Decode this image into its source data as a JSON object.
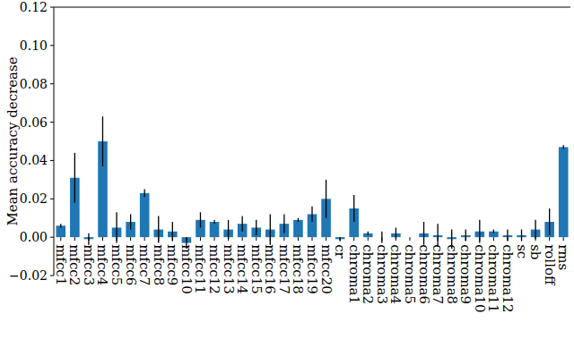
{
  "chart_data": {
    "type": "bar",
    "ylabel": "Mean accuracy decrease",
    "categories": [
      "mfcc1",
      "mfcc2",
      "mfcc3",
      "mfcc4",
      "mfcc5",
      "mfcc6",
      "mfcc7",
      "mfcc8",
      "mfcc9",
      "mfcc10",
      "mfcc11",
      "mfcc12",
      "mfcc13",
      "mfcc14",
      "mfcc15",
      "mfcc16",
      "mfcc17",
      "mfcc18",
      "mfcc19",
      "mfcc20",
      "cr",
      "chroma1",
      "chroma2",
      "chroma3",
      "chroma4",
      "chroma5",
      "chroma6",
      "chroma7",
      "chroma8",
      "chroma9",
      "chroma10",
      "chroma11",
      "chroma12",
      "sc",
      "sb",
      "rolloff",
      "rms"
    ],
    "values": [
      0.006,
      0.031,
      -0.001,
      0.05,
      0.005,
      0.008,
      0.023,
      0.004,
      0.003,
      -0.003,
      0.009,
      0.008,
      0.004,
      0.007,
      0.005,
      0.004,
      0.007,
      0.009,
      0.012,
      0.02,
      -0.001,
      0.015,
      0.002,
      0.0,
      0.002,
      0.0,
      0.002,
      0.001,
      -0.001,
      0.001,
      0.003,
      0.003,
      0.001,
      0.001,
      0.004,
      0.008,
      0.047
    ],
    "errors": [
      0.001,
      0.013,
      0.003,
      0.013,
      0.008,
      0.004,
      0.002,
      0.007,
      0.005,
      0.003,
      0.004,
      0.001,
      0.005,
      0.004,
      0.004,
      0.008,
      0.005,
      0.001,
      0.004,
      0.01,
      0.001,
      0.007,
      0.001,
      0.003,
      0.003,
      0.0,
      0.006,
      0.006,
      0.005,
      0.003,
      0.006,
      0.001,
      0.003,
      0.003,
      0.005,
      0.007,
      0.001
    ],
    "color": "#1f77b4",
    "ylim": [
      -0.02,
      0.12
    ],
    "yticks": [
      {
        "value": -0.02,
        "label": "−0.02"
      },
      {
        "value": 0,
        "label": "0.00"
      },
      {
        "value": 0.02,
        "label": "0.02"
      },
      {
        "value": 0.04,
        "label": "0.04"
      },
      {
        "value": 0.06,
        "label": "0.06"
      },
      {
        "value": 0.08,
        "label": "0.08"
      },
      {
        "value": 0.1,
        "label": "0.10"
      },
      {
        "value": 0.12,
        "label": "0.12"
      }
    ],
    "grid": false
  }
}
